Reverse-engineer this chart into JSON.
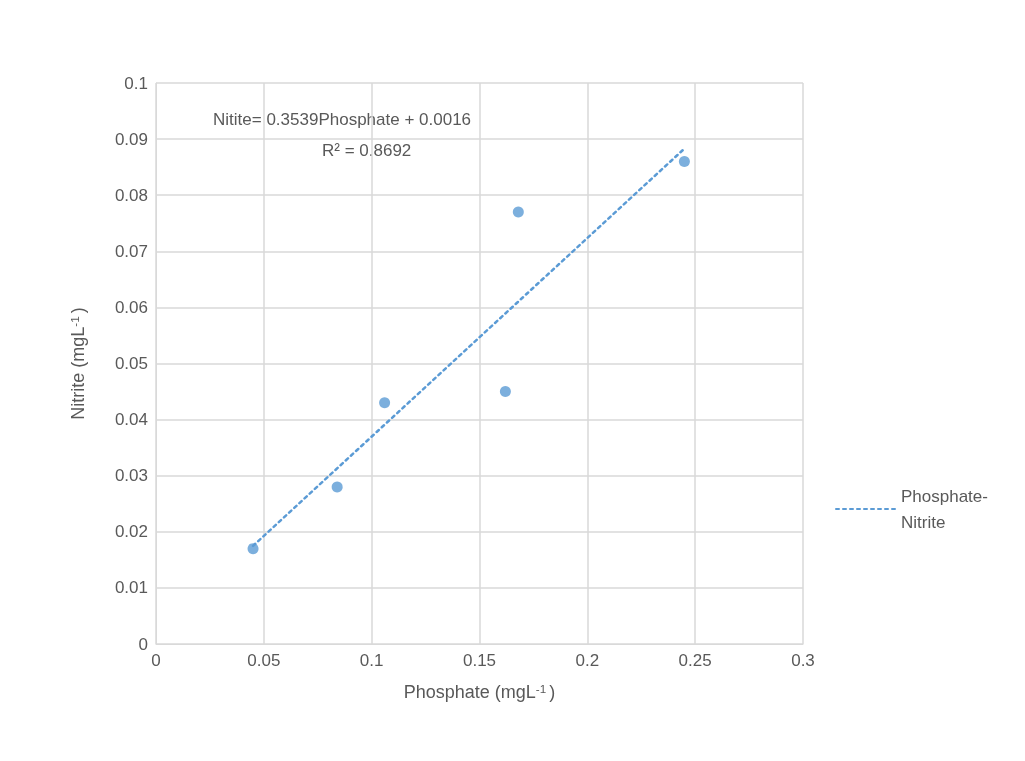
{
  "chart_data": {
    "type": "scatter",
    "xlabel": "Phosphate (mgL$^{-1}$)",
    "ylabel": "Nitrite (mgL$^{-1}$)",
    "annotations": [
      "Nitite= 0.3539Phosphate + 0.0016",
      "R² = 0.8692"
    ],
    "series": [
      {
        "color": "#5b9bd5",
        "marker": "circle",
        "x": [
          0.045,
          0.084,
          0.106,
          0.162,
          0.168,
          0.245
        ],
        "values": [
          0.017,
          0.028,
          0.043,
          0.045,
          0.077,
          0.086
        ]
      },
      {
        "type": "line",
        "name": "Phosphate-Nitrite",
        "color": "#5b9bd5",
        "marker": "none",
        "line_style": "dotted",
        "x": [
          0.045,
          0.245
        ],
        "values": [
          0.0175,
          0.0883
        ]
      }
    ],
    "xlim": [
      0,
      0.3
    ],
    "xticks": [
      0,
      0.05,
      0.1,
      0.15,
      0.2,
      0.25,
      0.3
    ],
    "ylim": [
      0,
      0.1
    ],
    "yticks": [
      0,
      0.01,
      0.02,
      0.03,
      0.04,
      0.05,
      0.06,
      0.07,
      0.08,
      0.09,
      0.1
    ],
    "grid": true,
    "legend": "right"
  }
}
